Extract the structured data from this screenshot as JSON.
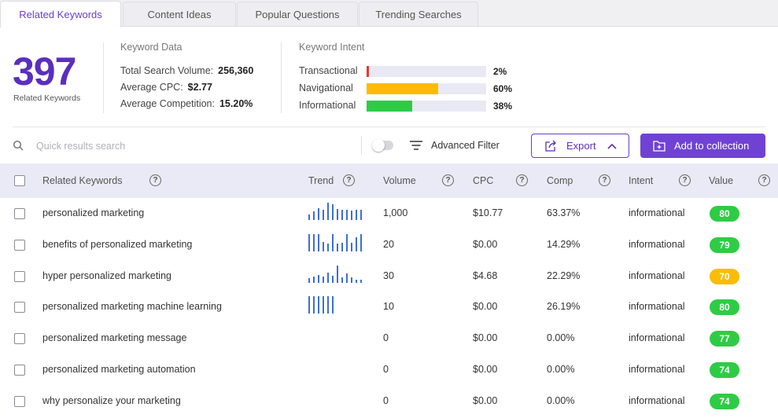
{
  "tabs": [
    "Related Keywords",
    "Content Ideas",
    "Popular Questions",
    "Trending Searches"
  ],
  "summary": {
    "count": "397",
    "count_label": "Related Keywords",
    "keyword_data": {
      "title": "Keyword Data",
      "rows": [
        {
          "label": "Total Search Volume:",
          "value": "256,360"
        },
        {
          "label": "Average CPC:",
          "value": "$2.77"
        },
        {
          "label": "Average Competition:",
          "value": "15.20%"
        }
      ]
    },
    "intent": {
      "title": "Keyword Intent",
      "rows": [
        {
          "label": "Transactional",
          "percent": "2%",
          "fraction": 0.02,
          "color": "#e53935"
        },
        {
          "label": "Navigational",
          "percent": "60%",
          "fraction": 0.6,
          "color": "#fbbc05"
        },
        {
          "label": "Informational",
          "percent": "38%",
          "fraction": 0.38,
          "color": "#2ecc45"
        }
      ]
    }
  },
  "toolbar": {
    "search_placeholder": "Quick results search",
    "advanced_filter": "Advanced Filter",
    "export": "Export",
    "add_to_collection": "Add to collection"
  },
  "table": {
    "headers": [
      "Related Keywords",
      "Trend",
      "Volume",
      "CPC",
      "Comp",
      "Intent",
      "Value"
    ],
    "rows": [
      {
        "keyword": "personalized marketing",
        "trend": [
          0.3,
          0.5,
          0.7,
          0.6,
          1.0,
          0.9,
          0.65,
          0.6,
          0.6,
          0.55,
          0.6,
          0.6
        ],
        "volume": "1,000",
        "cpc": "$10.77",
        "comp": "63.37%",
        "intent": "informational",
        "value": "80",
        "value_color": "#2ecc45"
      },
      {
        "keyword": "benefits of personalized marketing",
        "trend": [
          1.0,
          1.0,
          1.0,
          0.55,
          0.45,
          1.0,
          0.45,
          0.5,
          1.0,
          0.5,
          0.8,
          1.0
        ],
        "volume": "20",
        "cpc": "$0.00",
        "comp": "14.29%",
        "intent": "informational",
        "value": "79",
        "value_color": "#2ecc45"
      },
      {
        "keyword": "hyper personalized marketing",
        "trend": [
          0.25,
          0.35,
          0.45,
          0.35,
          0.6,
          0.4,
          1.0,
          0.3,
          0.55,
          0.3,
          0.2,
          0.2
        ],
        "volume": "30",
        "cpc": "$4.68",
        "comp": "22.29%",
        "intent": "informational",
        "value": "70",
        "value_color": "#fbbc05"
      },
      {
        "keyword": "personalized marketing machine learning",
        "trend": [
          1.0,
          1.0,
          1.0,
          1.0,
          1.0,
          1.0
        ],
        "volume": "10",
        "cpc": "$0.00",
        "comp": "26.19%",
        "intent": "informational",
        "value": "80",
        "value_color": "#2ecc45"
      },
      {
        "keyword": "personalized marketing message",
        "trend": [],
        "volume": "0",
        "cpc": "$0.00",
        "comp": "0.00%",
        "intent": "informational",
        "value": "77",
        "value_color": "#2ecc45"
      },
      {
        "keyword": "personalized marketing automation",
        "trend": [],
        "volume": "0",
        "cpc": "$0.00",
        "comp": "0.00%",
        "intent": "informational",
        "value": "74",
        "value_color": "#2ecc45"
      },
      {
        "keyword": "why personalize your marketing",
        "trend": [],
        "volume": "0",
        "cpc": "$0.00",
        "comp": "0.00%",
        "intent": "informational",
        "value": "74",
        "value_color": "#2ecc45"
      }
    ]
  }
}
